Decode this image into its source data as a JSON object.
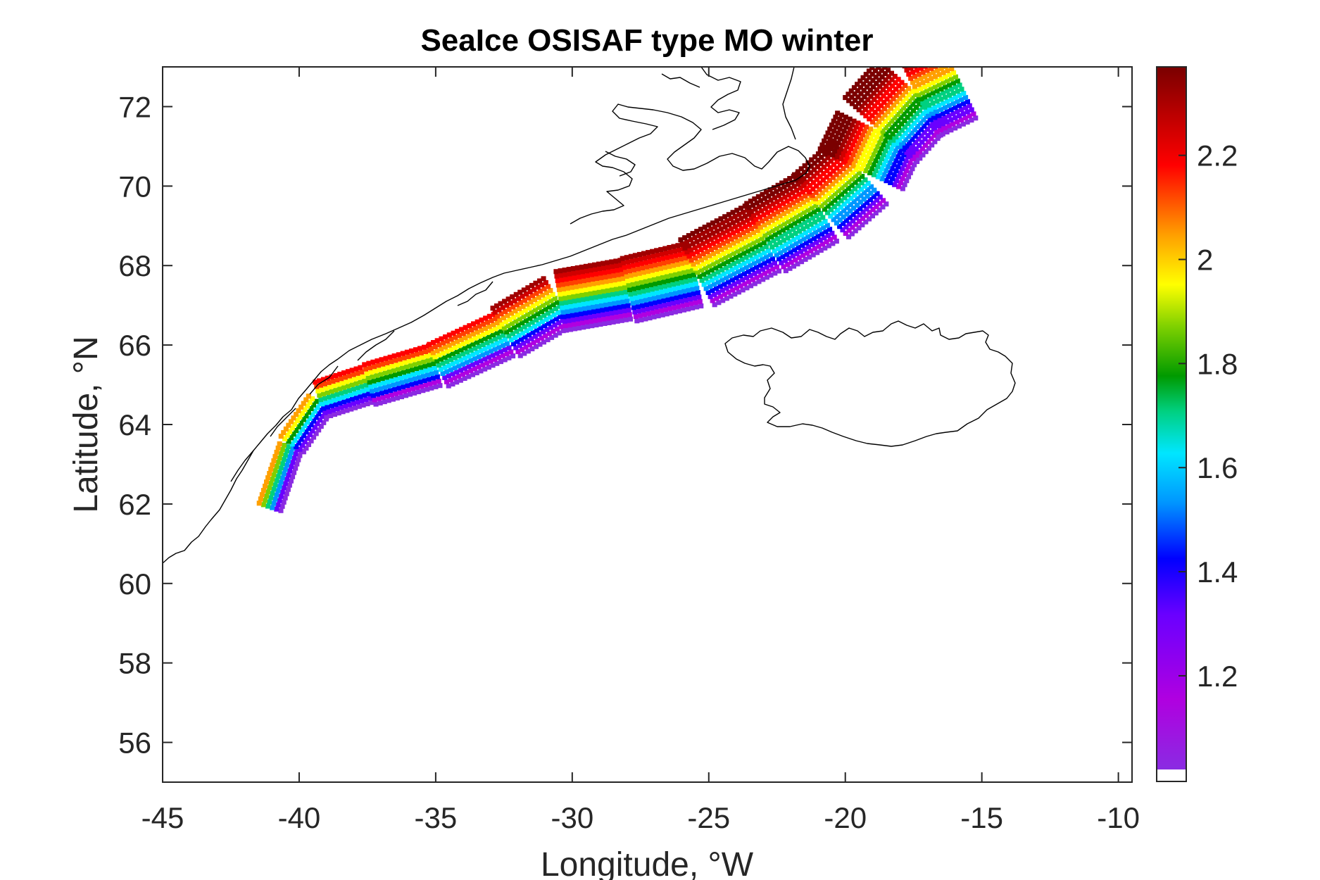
{
  "chart_data": {
    "type": "heatmap",
    "title": "SeaIce OSISAF type MO winter",
    "xlabel": "Longitude, °W",
    "ylabel": "Latitude, °N",
    "xlim": [
      -45,
      -9.5
    ],
    "ylim": [
      55,
      73
    ],
    "xticks": [
      "-45",
      "-40",
      "-35",
      "-30",
      "-25",
      "-20",
      "-15",
      "-10"
    ],
    "xtick_values": [
      -45,
      -40,
      -35,
      -30,
      -25,
      -20,
      -15,
      -10
    ],
    "yticks": [
      "56",
      "58",
      "60",
      "62",
      "64",
      "66",
      "68",
      "70",
      "72"
    ],
    "ytick_values": [
      56,
      58,
      60,
      62,
      64,
      66,
      68,
      70,
      72
    ],
    "colorbar": {
      "range": [
        1.02,
        2.37
      ],
      "ticks": [
        "1.2",
        "1.4",
        "1.6",
        "1.8",
        "2",
        "2.2"
      ],
      "tick_values": [
        1.2,
        1.4,
        1.6,
        1.8,
        2.0,
        2.2
      ],
      "colormap": [
        "#8a2be2",
        "#b000e0",
        "#6a00ff",
        "#0000ff",
        "#0096ff",
        "#00e6ff",
        "#00d080",
        "#009a00",
        "#7ed000",
        "#ffff00",
        "#ffa000",
        "#ff4000",
        "#ff0000",
        "#d00000",
        "#a00000",
        "#7a0000"
      ]
    },
    "ice_edge_centerline": [
      {
        "lon": -41.2,
        "lat": 62.0
      },
      {
        "lon": -40.4,
        "lat": 63.6
      },
      {
        "lon": -39.3,
        "lat": 64.7
      },
      {
        "lon": -37.5,
        "lat": 65.1
      },
      {
        "lon": -35.0,
        "lat": 65.6
      },
      {
        "lon": -32.5,
        "lat": 66.4
      },
      {
        "lon": -30.5,
        "lat": 67.2
      },
      {
        "lon": -28.0,
        "lat": 67.5
      },
      {
        "lon": -25.5,
        "lat": 67.9
      },
      {
        "lon": -23.0,
        "lat": 68.8
      },
      {
        "lon": -21.0,
        "lat": 69.6
      },
      {
        "lon": -19.5,
        "lat": 70.5
      },
      {
        "lon": -18.8,
        "lat": 71.5
      },
      {
        "lon": -17.5,
        "lat": 72.5
      },
      {
        "lon": -16.0,
        "lat": 73.0
      }
    ]
  }
}
